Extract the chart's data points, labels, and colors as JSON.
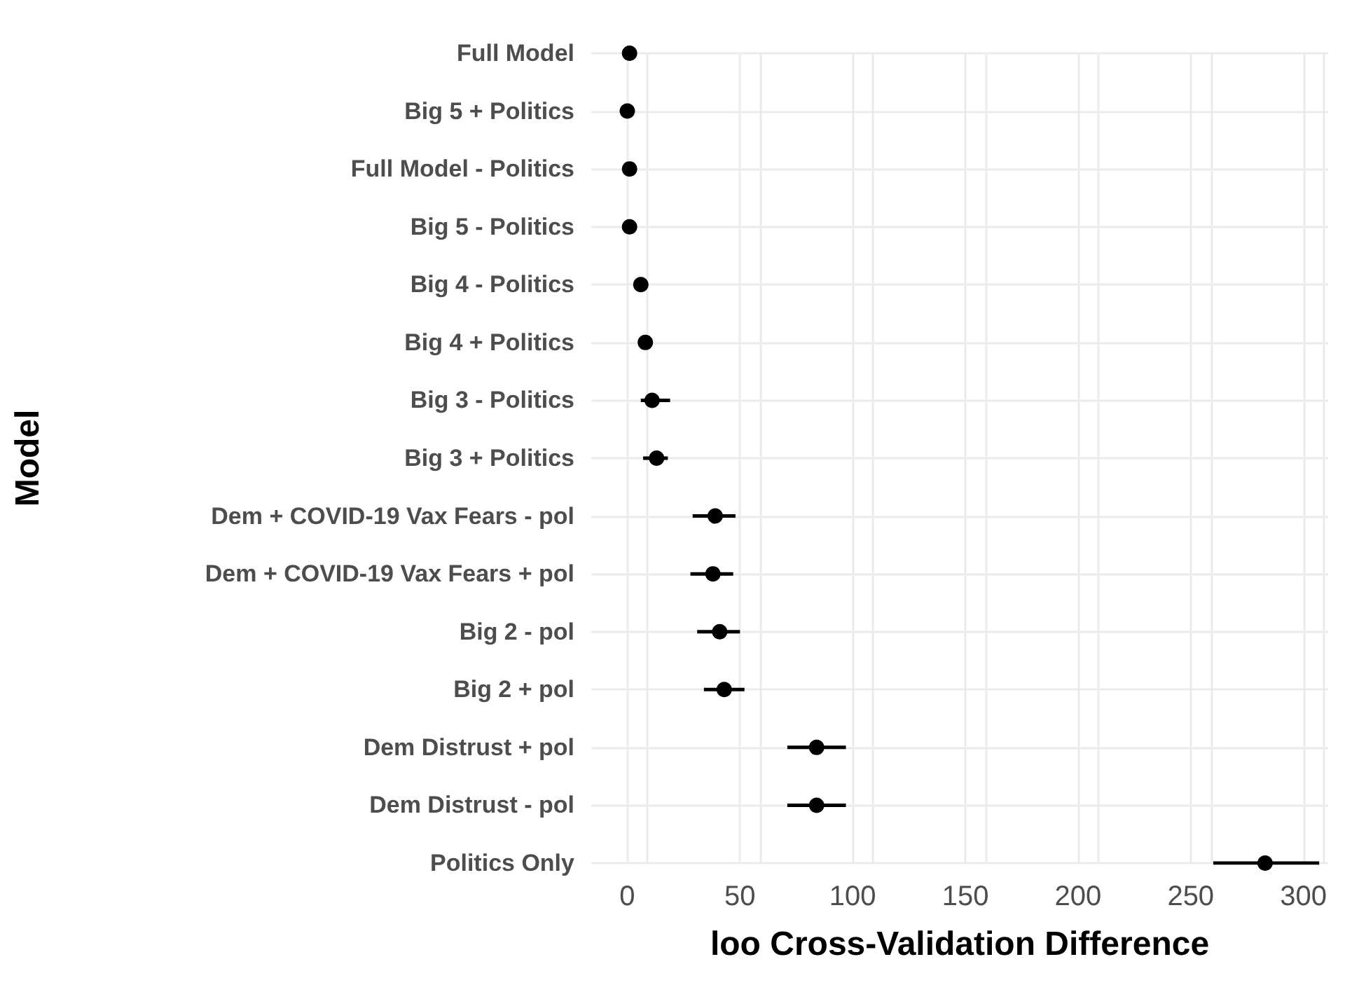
{
  "chart_data": {
    "type": "scatter",
    "orientation": "horizontal",
    "xlabel": "loo Cross-Validation Difference",
    "ylabel": "Model",
    "categories": [
      "Full Model",
      "Big 5 + Politics",
      "Full Model - Politics",
      "Big 5 - Politics",
      "Big 4 - Politics",
      "Big 4 + Politics",
      "Big 3 - Politics",
      "Big 3 + Politics",
      "Dem + COVID-19 Vax Fears - pol",
      "Dem + COVID-19 Vax Fears + pol",
      "Big 2 - pol",
      "Big 2 + pol",
      "Dem Distrust + pol",
      "Dem Distrust - pol",
      "Politics Only"
    ],
    "values": [
      1,
      0,
      1,
      1,
      6,
      8,
      11,
      13,
      39,
      38,
      41,
      43,
      84,
      84,
      283
    ],
    "errors": [
      null,
      null,
      null,
      null,
      2,
      2,
      [
        6,
        19
      ],
      [
        7,
        18
      ],
      [
        29,
        48
      ],
      [
        28,
        47
      ],
      [
        31,
        50
      ],
      [
        34,
        52
      ],
      [
        71,
        97
      ],
      [
        71,
        97
      ],
      [
        260,
        307
      ]
    ],
    "color": "#000000",
    "marker": "circle",
    "xlim": [
      -16,
      311
    ],
    "xticks": [
      0,
      50,
      100,
      150,
      200,
      250,
      300
    ],
    "grid": true
  }
}
